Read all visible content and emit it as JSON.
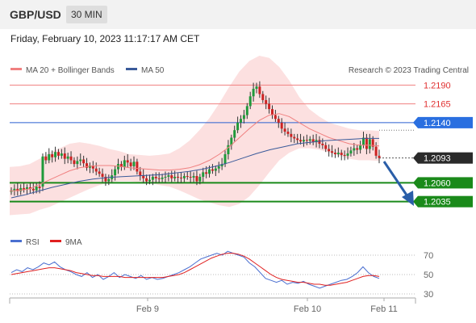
{
  "header": {
    "symbol": "GBP/USD",
    "timeframe": "30 MIN",
    "datetime": "Friday, February 10, 2023 11:17:17 AM CET"
  },
  "chart_data": {
    "type": "candlestick",
    "legend": [
      {
        "label": "MA 20 + Bollinger Bands",
        "color": "#f08080"
      },
      {
        "label": "MA 50",
        "color": "#3a5a9a"
      }
    ],
    "copyright": "Research © 2023 Trading Central",
    "levels": [
      {
        "label": "1.2190",
        "value": 1.219,
        "kind": "resistance"
      },
      {
        "label": "1.2165",
        "value": 1.2165,
        "kind": "resistance"
      },
      {
        "label": "1.2140",
        "value": 1.214,
        "kind": "pivot"
      },
      {
        "label": "1.2093",
        "value": 1.2093,
        "kind": "last"
      },
      {
        "label": "1.2060",
        "value": 1.206,
        "kind": "support"
      },
      {
        "label": "1.2035",
        "value": 1.2035,
        "kind": "support"
      }
    ],
    "x_ticks": [
      "Feb 9",
      "Feb 10",
      "Feb 11"
    ],
    "price_range": [
      1.2025,
      1.22
    ],
    "closes": [
      1.205,
      1.2052,
      1.2049,
      1.2053,
      1.2051,
      1.2054,
      1.2052,
      1.205,
      1.2055,
      1.2053,
      1.2095,
      1.209,
      1.2098,
      1.2094,
      1.2101,
      1.2096,
      1.2099,
      1.2092,
      1.2095,
      1.209,
      1.2085,
      1.2089,
      1.2091,
      1.2086,
      1.208,
      1.2083,
      1.2079,
      1.2075,
      1.2072,
      1.2068,
      1.2062,
      1.2065,
      1.207,
      1.2078,
      1.2085,
      1.2081,
      1.209,
      1.2087,
      1.2082,
      1.2088,
      1.2075,
      1.207,
      1.2066,
      1.2062,
      1.2064,
      1.2068,
      1.2066,
      1.2065,
      1.2067,
      1.2068,
      1.207,
      1.2066,
      1.2068,
      1.2067,
      1.2066,
      1.2069,
      1.2068,
      1.2067,
      1.2069,
      1.2062,
      1.2068,
      1.2074,
      1.2072,
      1.2078,
      1.2076,
      1.2079,
      1.2082,
      1.2085,
      1.2098,
      1.211,
      1.212,
      1.213,
      1.214,
      1.2145,
      1.215,
      1.2162,
      1.2175,
      1.2185,
      1.2188,
      1.2178,
      1.217,
      1.2165,
      1.2158,
      1.215,
      1.2145,
      1.214,
      1.2132,
      1.2128,
      1.2125,
      1.2121,
      1.2119,
      1.2117,
      1.2115,
      1.2117,
      1.2116,
      1.2118,
      1.2114,
      1.2117,
      1.2112,
      1.211,
      1.2105,
      1.2102,
      1.21,
      1.2098,
      1.21,
      1.2097,
      1.2096,
      1.2099,
      1.2103,
      1.2106,
      1.2104,
      1.211,
      1.212,
      1.2105,
      1.2118,
      1.2108,
      1.2096,
      1.2093
    ],
    "ma20": [
      1.2049,
      1.205,
      1.2052,
      1.2058,
      1.2064,
      1.207,
      1.2076,
      1.208,
      1.2082,
      1.2083,
      1.2083,
      1.2082,
      1.208,
      1.2079,
      1.2078,
      1.2077,
      1.2077,
      1.2078,
      1.208,
      1.2084,
      1.209,
      1.2098,
      1.2108,
      1.212,
      1.2132,
      1.2143,
      1.215,
      1.2152,
      1.2148,
      1.214,
      1.2132,
      1.2126,
      1.212,
      1.2116,
      1.2112,
      1.211,
      1.211,
      1.2109
    ],
    "ma50": [
      1.204,
      1.2044,
      1.2049,
      1.2054,
      1.2058,
      1.2062,
      1.2065,
      1.2067,
      1.2068,
      1.2069,
      1.207,
      1.2071,
      1.2073,
      1.2075,
      1.2078,
      1.2082,
      1.2087,
      1.2093,
      1.2099,
      1.2104,
      1.2108,
      1.2112,
      1.2114,
      1.2116,
      1.2117,
      1.2118,
      1.2119,
      1.2119
    ],
    "rsi": {
      "legend": [
        {
          "label": "RSI",
          "color": "#4a6fd0"
        },
        {
          "label": "9MA",
          "color": "#e02020"
        }
      ],
      "levels": [
        70,
        50,
        30
      ],
      "level_labels": [
        "70",
        "50",
        "30"
      ],
      "range": [
        20,
        80
      ],
      "values": [
        52,
        55,
        53,
        57,
        55,
        58,
        62,
        60,
        63,
        58,
        55,
        53,
        50,
        48,
        52,
        47,
        50,
        45,
        48,
        52,
        47,
        50,
        48,
        46,
        49,
        45,
        47,
        45,
        46,
        48,
        50,
        52,
        55,
        58,
        62,
        66,
        68,
        70,
        72,
        70,
        74,
        72,
        70,
        68,
        62,
        58,
        52,
        46,
        44,
        42,
        44,
        40,
        42,
        41,
        43,
        40,
        38,
        36,
        38,
        40,
        42,
        44,
        45,
        48,
        52,
        58,
        52,
        48,
        46
      ],
      "ma": [
        50,
        51,
        52,
        53,
        54,
        55,
        56,
        57,
        57,
        56,
        55,
        54,
        52,
        51,
        50,
        49,
        49,
        48,
        48,
        48,
        48,
        47,
        47,
        47,
        47,
        47,
        47,
        47,
        47,
        48,
        49,
        50,
        52,
        55,
        58,
        61,
        64,
        67,
        69,
        71,
        72,
        72,
        71,
        69,
        66,
        62,
        58,
        54,
        50,
        47,
        45,
        44,
        43,
        42,
        42,
        41,
        40,
        40,
        39,
        39,
        40,
        41,
        42,
        44,
        46,
        48,
        49,
        49,
        48
      ]
    }
  }
}
